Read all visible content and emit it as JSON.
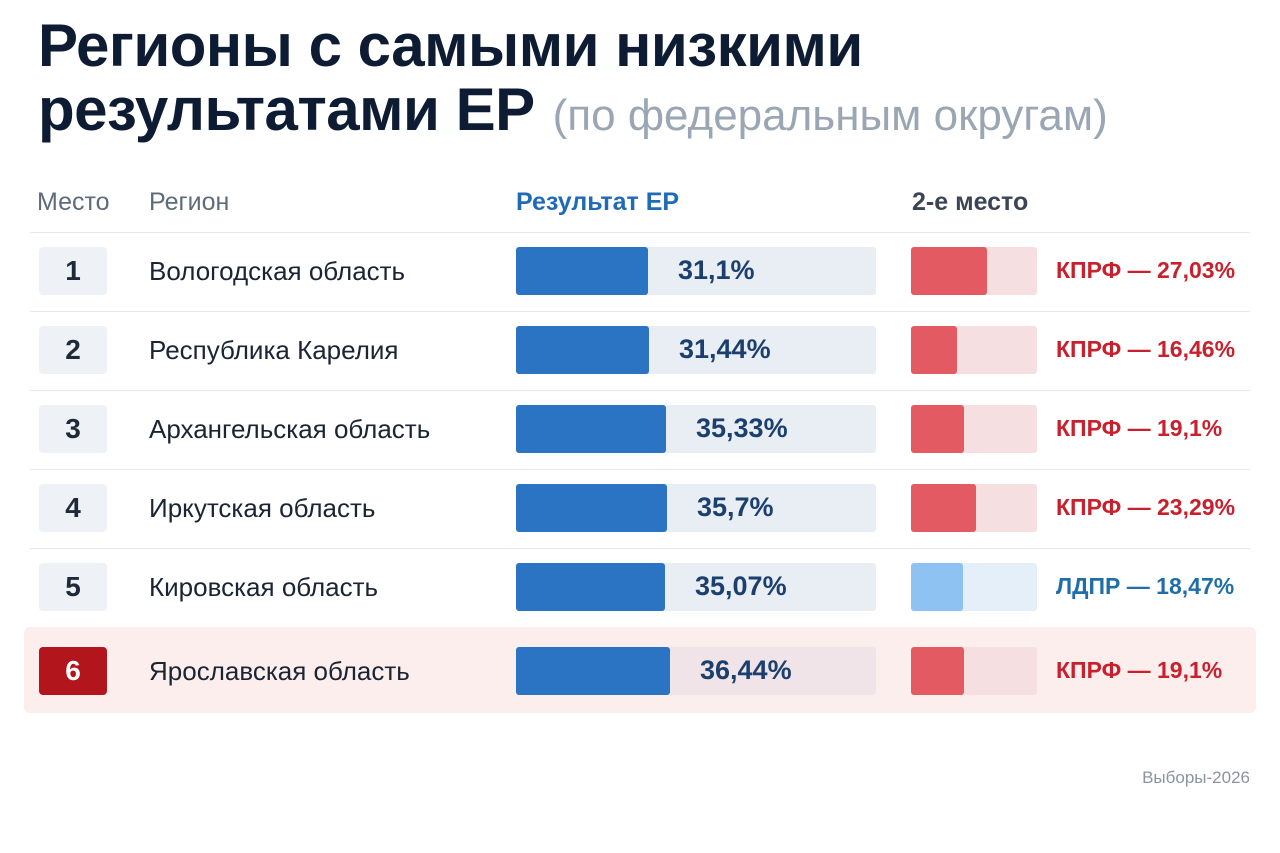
{
  "title": {
    "line1": "Регионы с самыми низкими",
    "line2": "результатами ЕР",
    "sub": "(по федеральным округам)"
  },
  "headers": {
    "rank": "Место",
    "region": "Регион",
    "result": "Результат ЕР",
    "second": "2-е место"
  },
  "colors": {
    "er_bar": "#2b73c3",
    "kprf": "#e35a63",
    "kprf_track": "#f6dfe1",
    "kprf_text": "#c8202d",
    "ldpr": "#8ec2f3",
    "ldpr_track": "#e4effa",
    "ldpr_text": "#1f6ea8",
    "highlight_rank": "#b3151d"
  },
  "chart_data": {
    "type": "table",
    "columns": [
      "Место",
      "Регион",
      "Результат ЕР",
      "2-е место"
    ],
    "rows": [
      {
        "rank": "1",
        "region": "Вологодская область",
        "er_value": 31.1,
        "er_label": "31,1%",
        "second_party": "kprf",
        "second_value": 27.03,
        "second_label": "КПРФ — 27,03%",
        "highlight": false
      },
      {
        "rank": "2",
        "region": "Республика Карелия",
        "er_value": 31.44,
        "er_label": "31,44%",
        "second_party": "kprf",
        "second_value": 16.46,
        "second_label": "КПРФ — 16,46%",
        "highlight": false
      },
      {
        "rank": "3",
        "region": "Архангельская область",
        "er_value": 35.33,
        "er_label": "35,33%",
        "second_party": "kprf",
        "second_value": 19.1,
        "second_label": "КПРФ — 19,1%",
        "highlight": false
      },
      {
        "rank": "4",
        "region": "Иркутская область",
        "er_value": 35.7,
        "er_label": "35,7%",
        "second_party": "kprf",
        "second_value": 23.29,
        "second_label": "КПРФ — 23,29%",
        "highlight": false
      },
      {
        "rank": "5",
        "region": "Кировская область",
        "er_value": 35.07,
        "er_label": "35,07%",
        "second_party": "ldpr",
        "second_value": 18.47,
        "second_label": "ЛДПР — 18,47%",
        "highlight": false
      },
      {
        "rank": "6",
        "region": "Ярославская область",
        "er_value": 36.44,
        "er_label": "36,44%",
        "second_party": "kprf",
        "second_value": 19.1,
        "second_label": "КПРФ — 19,1%",
        "highlight": true
      }
    ]
  },
  "footer": "Выборы-2026"
}
